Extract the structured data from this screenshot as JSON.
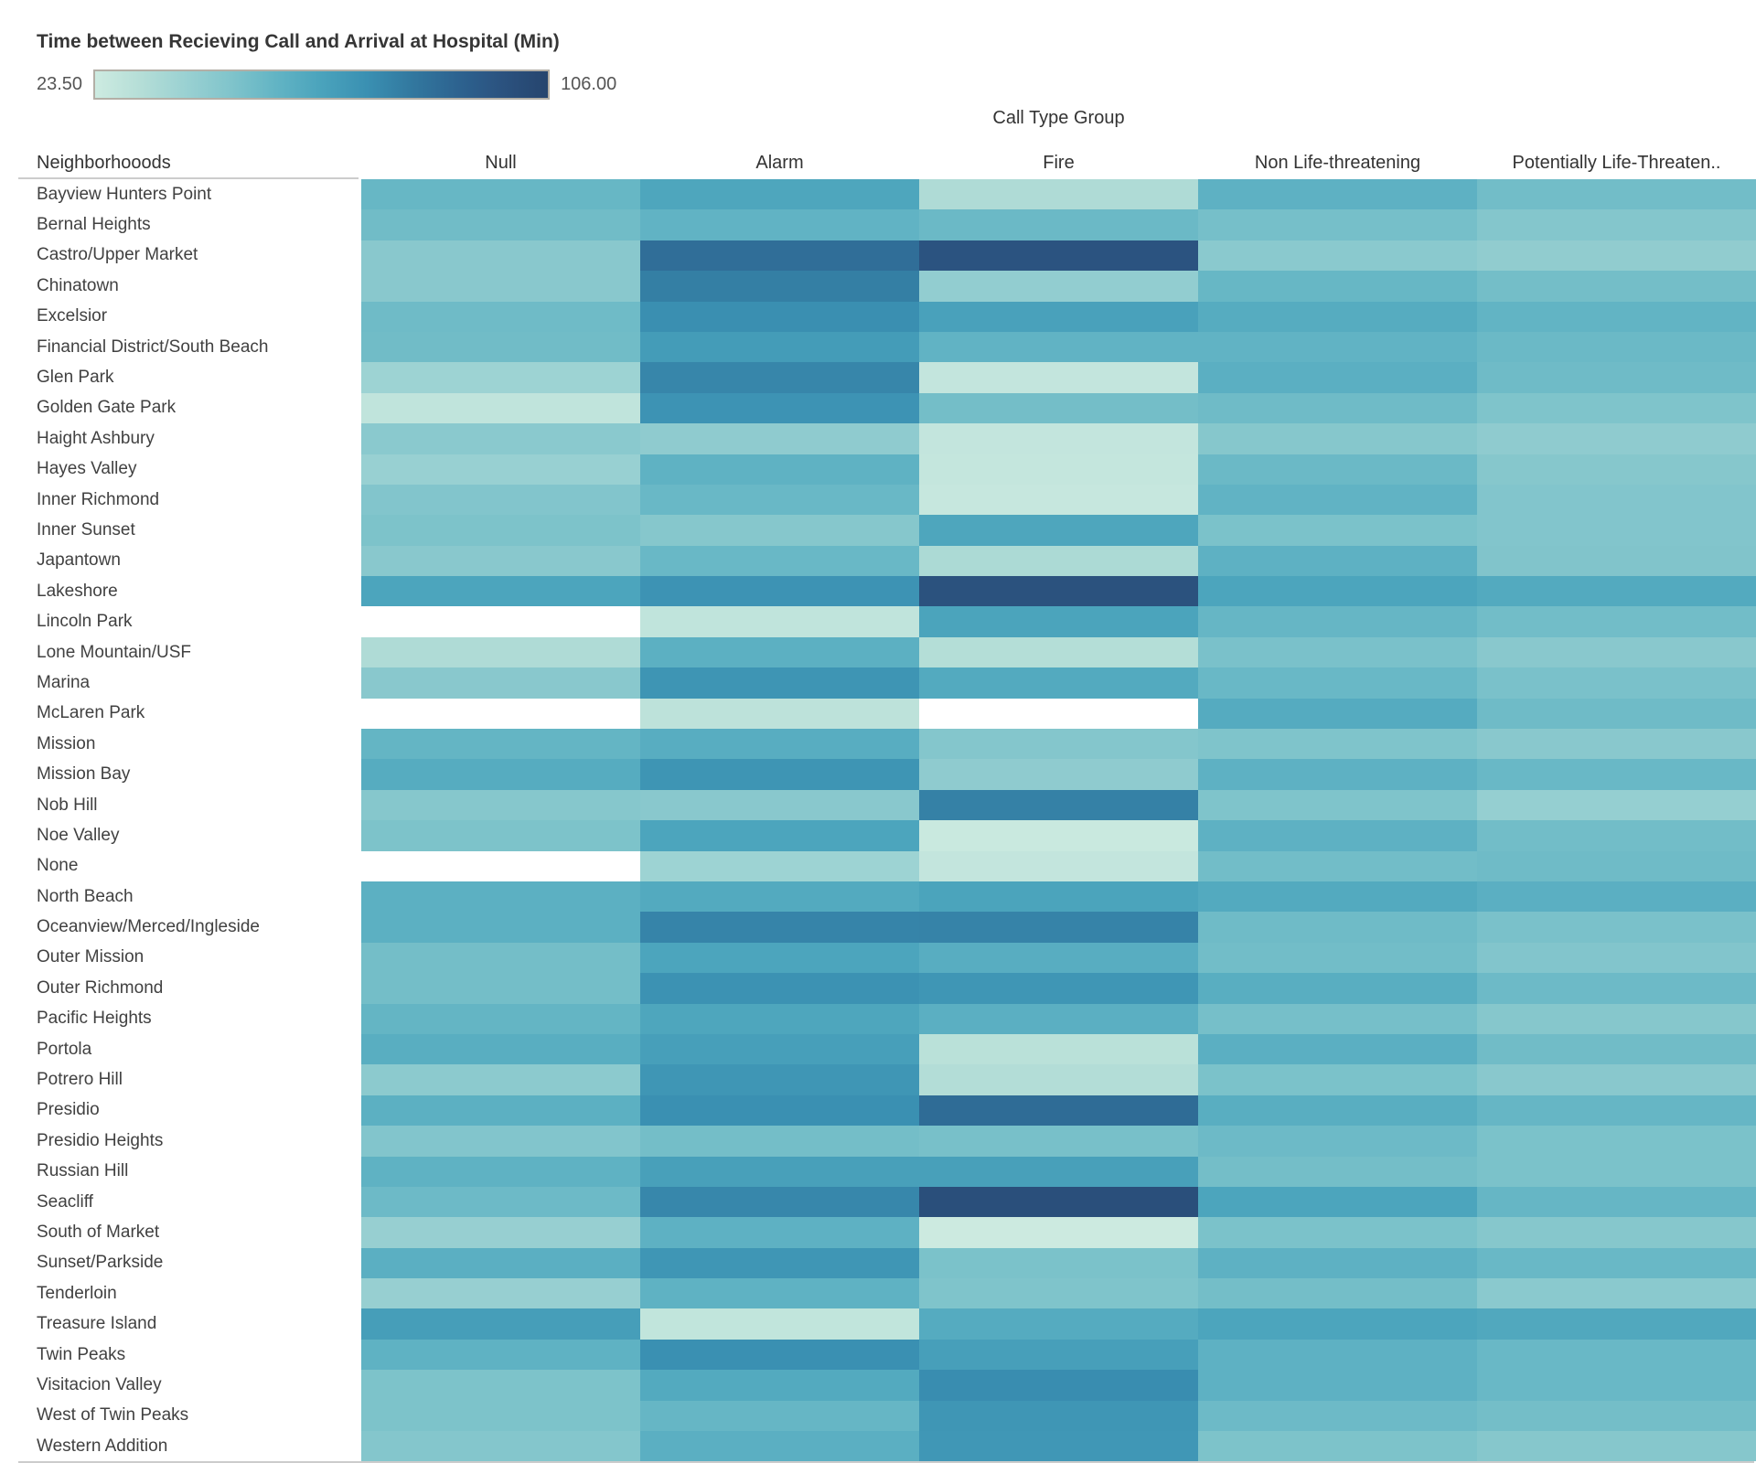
{
  "legend": {
    "title": "Time between Recieving Call and Arrival at Hospital (Min)",
    "min_label": "23.50",
    "max_label": "106.00"
  },
  "column_axis_title": "Call Type Group",
  "row_axis_title": "Neighborhooods",
  "chart_data": {
    "type": "heatmap",
    "title": "Time between Recieving Call and Arrival at Hospital (Min)",
    "value_min": 23.5,
    "value_max": 106.0,
    "null_color": "#ffffff",
    "colormap": [
      {
        "t": 0.0,
        "color": "#cdebe1"
      },
      {
        "t": 0.1,
        "color": "#b5ded7"
      },
      {
        "t": 0.2,
        "color": "#9ad1d2"
      },
      {
        "t": 0.3,
        "color": "#80c4cb"
      },
      {
        "t": 0.4,
        "color": "#62b4c4"
      },
      {
        "t": 0.5,
        "color": "#4aa3bc"
      },
      {
        "t": 0.6,
        "color": "#3a90b2"
      },
      {
        "t": 0.7,
        "color": "#32789f"
      },
      {
        "t": 0.8,
        "color": "#2d6390"
      },
      {
        "t": 0.9,
        "color": "#2b527f"
      },
      {
        "t": 1.0,
        "color": "#26456e"
      }
    ],
    "categories": [
      "Null",
      "Alarm",
      "Fire",
      "Non Life-threatening",
      "Potentially Life-Threaten.."
    ],
    "rows": [
      {
        "name": "Bayview Hunters Point",
        "values": [
          55,
          63.5,
          33.5,
          58,
          52
        ]
      },
      {
        "name": "Bernal Heights",
        "values": [
          52.5,
          57,
          54,
          51,
          47
        ]
      },
      {
        "name": "Castro/Upper Market",
        "values": [
          45.5,
          85,
          97.5,
          45,
          43
        ]
      },
      {
        "name": "Chinatown",
        "values": [
          45.5,
          79,
          42.5,
          55,
          51.5
        ]
      },
      {
        "name": "Excelsior",
        "values": [
          53,
          73.5,
          65.5,
          60.5,
          56.5
        ]
      },
      {
        "name": "Financial District/South Beach",
        "values": [
          52.5,
          68,
          57,
          57,
          54
        ]
      },
      {
        "name": "Glen Park",
        "values": [
          39,
          76.5,
          27,
          59,
          53
        ]
      },
      {
        "name": "Golden Gate Park",
        "values": [
          28,
          71.5,
          51.5,
          53,
          48.5
        ]
      },
      {
        "name": "Haight Ashbury",
        "values": [
          45,
          43.5,
          27,
          46.5,
          43.5
        ]
      },
      {
        "name": "Hayes Valley",
        "values": [
          40.5,
          57.5,
          26.5,
          54,
          46.5
        ]
      },
      {
        "name": "Inner Richmond",
        "values": [
          47.5,
          54.5,
          26,
          57,
          47.5
        ]
      },
      {
        "name": "Inner Sunset",
        "values": [
          49,
          46.5,
          63.5,
          49.5,
          47.5
        ]
      },
      {
        "name": "Japantown",
        "values": [
          45.5,
          54.5,
          34.5,
          58,
          48
        ]
      },
      {
        "name": "Lakeshore",
        "values": [
          64,
          71.5,
          98,
          64,
          61.5
        ]
      },
      {
        "name": "Lincoln Park",
        "values": [
          null,
          28,
          64.5,
          55.5,
          52
        ]
      },
      {
        "name": "Lone Mountain/USF",
        "values": [
          33.5,
          58.5,
          32,
          50,
          45.5
        ]
      },
      {
        "name": "Marina",
        "values": [
          45.5,
          71,
          61.5,
          54.5,
          50
        ]
      },
      {
        "name": "McLaren Park",
        "values": [
          null,
          29,
          null,
          61,
          53
        ]
      },
      {
        "name": "Mission",
        "values": [
          56,
          60,
          47,
          48.5,
          45.5
        ]
      },
      {
        "name": "Mission Bay",
        "values": [
          60.5,
          71,
          43.5,
          58,
          54.5
        ]
      },
      {
        "name": "Nob Hill",
        "values": [
          46.5,
          45.5,
          78,
          48.5,
          41.5
        ]
      },
      {
        "name": "Noe Valley",
        "values": [
          49,
          64,
          25,
          58,
          52
        ]
      },
      {
        "name": "None",
        "values": [
          null,
          39,
          27,
          52,
          53
        ]
      },
      {
        "name": "North Beach",
        "values": [
          58.5,
          61.5,
          64.5,
          61.5,
          59
        ]
      },
      {
        "name": "Oceanview/Merced/Ingleside",
        "values": [
          58.5,
          77,
          77.5,
          53,
          50
        ]
      },
      {
        "name": "Outer Mission",
        "values": [
          51.5,
          64,
          60,
          52,
          47.5
        ]
      },
      {
        "name": "Outer Richmond",
        "values": [
          51.5,
          72,
          70.5,
          59.5,
          53.5
        ]
      },
      {
        "name": "Pacific Heights",
        "values": [
          56,
          63.5,
          59,
          51,
          46.5
        ]
      },
      {
        "name": "Portola",
        "values": [
          59.5,
          66.5,
          30,
          59,
          52.5
        ]
      },
      {
        "name": "Potrero Hill",
        "values": [
          44.5,
          70.5,
          32.5,
          49.5,
          45.5
        ]
      },
      {
        "name": "Presidio",
        "values": [
          58.5,
          73,
          86,
          59.5,
          55.5
        ]
      },
      {
        "name": "Presidio Heights",
        "values": [
          47.5,
          51.5,
          50.5,
          53.5,
          49.5
        ]
      },
      {
        "name": "Russian Hill",
        "values": [
          57.5,
          66,
          66,
          51.5,
          49.5
        ]
      },
      {
        "name": "Seacliff",
        "values": [
          53.5,
          76,
          99.5,
          64,
          55.5
        ]
      },
      {
        "name": "South of Market",
        "values": [
          41,
          58,
          24,
          49.5,
          46.5
        ]
      },
      {
        "name": "Sunset/Parkside",
        "values": [
          59,
          70.5,
          49.5,
          58,
          54.5
        ]
      },
      {
        "name": "Tenderloin",
        "values": [
          41,
          57.5,
          48.5,
          51.5,
          45
        ]
      },
      {
        "name": "Treasure Island",
        "values": [
          67,
          27.5,
          61,
          64,
          62.5
        ]
      },
      {
        "name": "Twin Peaks",
        "values": [
          57.5,
          73,
          66.5,
          58,
          54.5
        ]
      },
      {
        "name": "Visitacion Valley",
        "values": [
          49,
          61.5,
          74,
          58,
          54.5
        ]
      },
      {
        "name": "West of Twin Peaks",
        "values": [
          49,
          55.5,
          70.5,
          53.5,
          51.5
        ]
      },
      {
        "name": "Western Addition",
        "values": [
          47,
          59,
          70,
          49,
          46.5
        ]
      }
    ]
  }
}
